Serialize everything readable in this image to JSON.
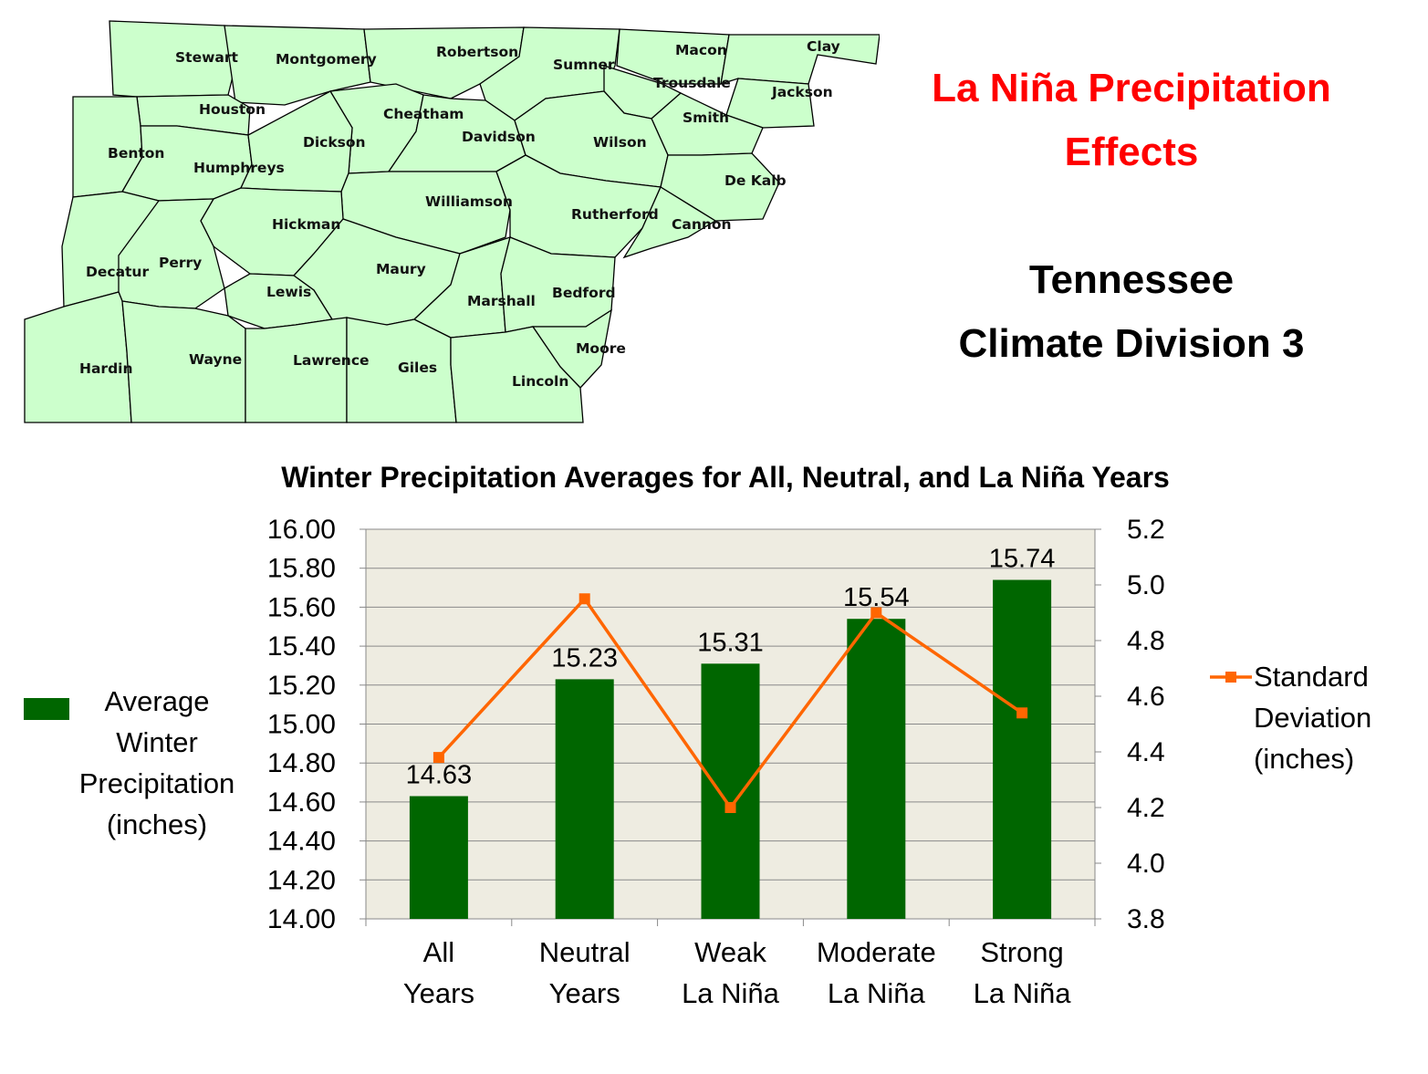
{
  "slide": {
    "title_line1": "La Niña Precipitation",
    "title_line2": "Effects",
    "subtitle_line1": "Tennessee",
    "subtitle_line2": "Climate Division 3",
    "title_color": "#ff0000",
    "subtitle_color": "#000000"
  },
  "map": {
    "fill_color": "#ccffcc",
    "border_color": "#000000",
    "counties": [
      "Stewart",
      "Montgomery",
      "Robertson",
      "Sumner",
      "Macon",
      "Clay",
      "Trousdale",
      "Jackson",
      "Houston",
      "Cheatham",
      "Davidson",
      "Smith",
      "Wilson",
      "Benton",
      "Humphreys",
      "Dickson",
      "De Kalb",
      "Williamson",
      "Rutherford",
      "Cannon",
      "Hickman",
      "Decatur",
      "Perry",
      "Maury",
      "Lewis",
      "Marshall",
      "Bedford",
      "Moore",
      "Hardin",
      "Wayne",
      "Lawrence",
      "Giles",
      "Lincoln"
    ]
  },
  "chart_data": {
    "type": "bar",
    "title": "Winter Precipitation Averages for All, Neutral, and La Niña Years",
    "categories": [
      [
        "All",
        "Years"
      ],
      [
        "Neutral",
        "Years"
      ],
      [
        "Weak",
        "La Niña"
      ],
      [
        "Moderate",
        "La Niña"
      ],
      [
        "Strong",
        "La Niña"
      ]
    ],
    "series": [
      {
        "name": "Average Winter Precipitation (inches)",
        "legend_lines": [
          "Average",
          "Winter",
          "Precipitation",
          "(inches)"
        ],
        "type": "bar",
        "axis": "left",
        "values": [
          14.63,
          15.23,
          15.31,
          15.54,
          15.74
        ],
        "data_labels": [
          "14.63",
          "15.23",
          "15.31",
          "15.54",
          "15.74"
        ],
        "color": "#006600"
      },
      {
        "name": "Standard Deviation (inches)",
        "legend_lines": [
          "Standard",
          "Deviation",
          "(inches)"
        ],
        "type": "line",
        "axis": "right",
        "values": [
          4.38,
          4.95,
          4.2,
          4.9,
          4.54
        ],
        "color": "#ff6600"
      }
    ],
    "y_left": {
      "range": [
        14.0,
        16.0
      ],
      "ticks": [
        "14.00",
        "14.20",
        "14.40",
        "14.60",
        "14.80",
        "15.00",
        "15.20",
        "15.40",
        "15.60",
        "15.80",
        "16.00"
      ]
    },
    "y_right": {
      "range": [
        3.8,
        5.2
      ],
      "ticks": [
        "3.8",
        "4.0",
        "4.2",
        "4.4",
        "4.6",
        "4.8",
        "5.0",
        "5.2"
      ]
    },
    "plot_background": "#eeece1",
    "grid": true,
    "legend_placement": "left (bar series), right (line series)"
  }
}
